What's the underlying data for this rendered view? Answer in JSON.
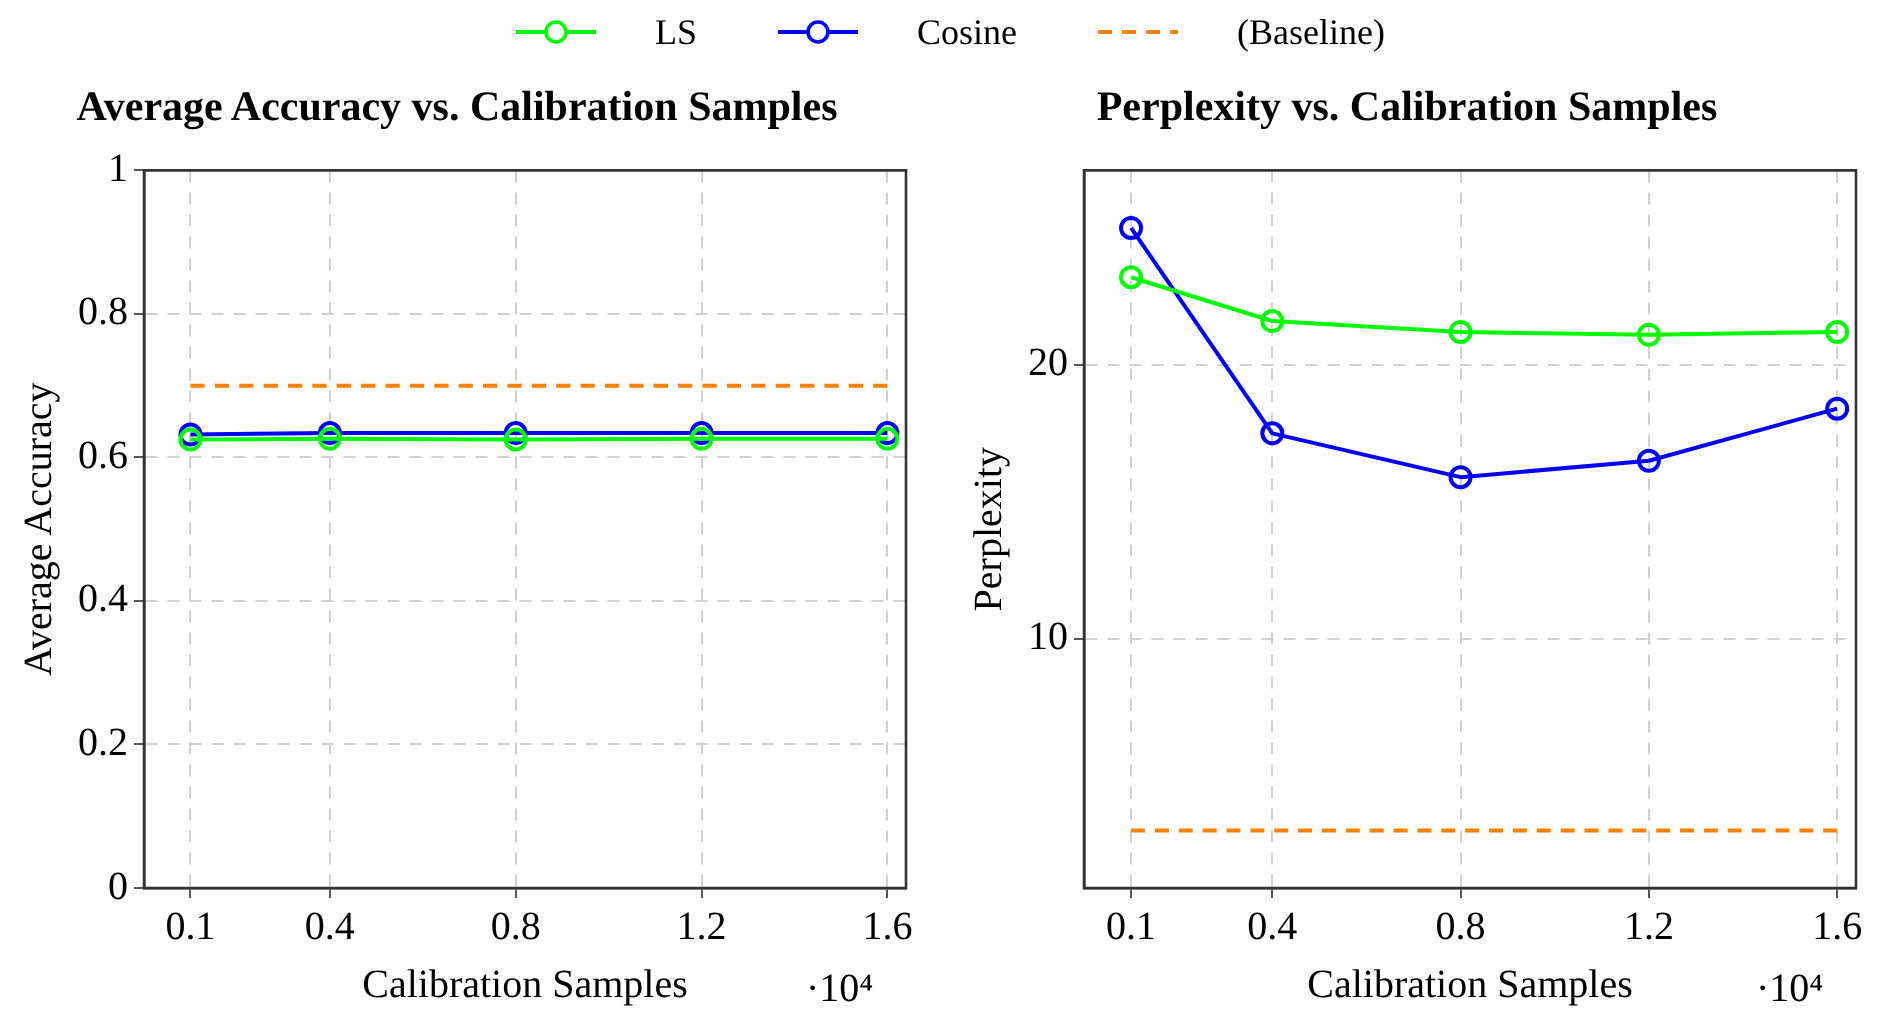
{
  "chart_data": [
    {
      "type": "line",
      "title": "Average Accuracy vs. Calibration Samples",
      "xlabel": "Calibration Samples",
      "ylabel": "Average Accuracy",
      "annotations": [
        "·10⁴"
      ],
      "x": [
        0.1,
        0.4,
        0.8,
        1.2,
        1.6
      ],
      "xlim": [
        0,
        1.64
      ],
      "xticks": [
        {
          "value": 0.1,
          "label": "0.1"
        },
        {
          "value": 0.4,
          "label": "0.4"
        },
        {
          "value": 0.8,
          "label": "0.8"
        },
        {
          "value": 1.2,
          "label": "1.2"
        },
        {
          "value": 1.6,
          "label": "1.6"
        }
      ],
      "ylim": [
        0,
        1
      ],
      "yticks": [
        0,
        {
          "value": 0.2,
          "label": "0.2"
        },
        {
          "value": 0.4,
          "label": "0.4"
        },
        {
          "value": 0.6,
          "label": "0.6"
        },
        {
          "value": 0.8,
          "label": "0.8"
        },
        1
      ],
      "grid": true,
      "legend": "top",
      "marker": "circle",
      "series": [
        {
          "name": "LS",
          "color": "#00ff00",
          "values": [
            0.625,
            0.626,
            0.625,
            0.626,
            0.626
          ]
        },
        {
          "name": "Cosine",
          "color": "#0000ff",
          "values": [
            0.632,
            0.634,
            0.634,
            0.634,
            0.634
          ]
        },
        {
          "name": "(Baseline)",
          "color": "#ff8000",
          "values": [
            0.7,
            0.7,
            0.7,
            0.7,
            0.7
          ],
          "line_style": "dashed",
          "marker": "none"
        }
      ]
    },
    {
      "type": "line",
      "title": "Perplexity vs. Calibration Samples",
      "xlabel": "Calibration Samples",
      "ylabel": "Perplexity",
      "annotations": [
        "·10⁴"
      ],
      "x": [
        0.1,
        0.4,
        0.8,
        1.2,
        1.6
      ],
      "xlim": [
        0,
        1.64
      ],
      "xticks": [
        {
          "value": 0.1,
          "label": "0.1"
        },
        {
          "value": 0.4,
          "label": "0.4"
        },
        {
          "value": 0.8,
          "label": "0.8"
        },
        {
          "value": 1.2,
          "label": "1.2"
        },
        {
          "value": 1.6,
          "label": "1.6"
        }
      ],
      "ylim": [
        0.9,
        27.1
      ],
      "yticks": [
        10,
        20
      ],
      "grid": true,
      "marker": "circle",
      "series": [
        {
          "color": "#00ff00",
          "values": [
            23.2,
            21.6,
            21.2,
            21.1,
            21.2
          ]
        },
        {
          "color": "#0000ff",
          "values": [
            25.0,
            17.5,
            15.9,
            16.5,
            18.4
          ]
        },
        {
          "color": "#ff8000",
          "values": [
            3.0,
            3.0,
            3.0,
            3.0,
            3.0
          ],
          "line_style": "dashed",
          "marker": "none"
        }
      ]
    }
  ]
}
